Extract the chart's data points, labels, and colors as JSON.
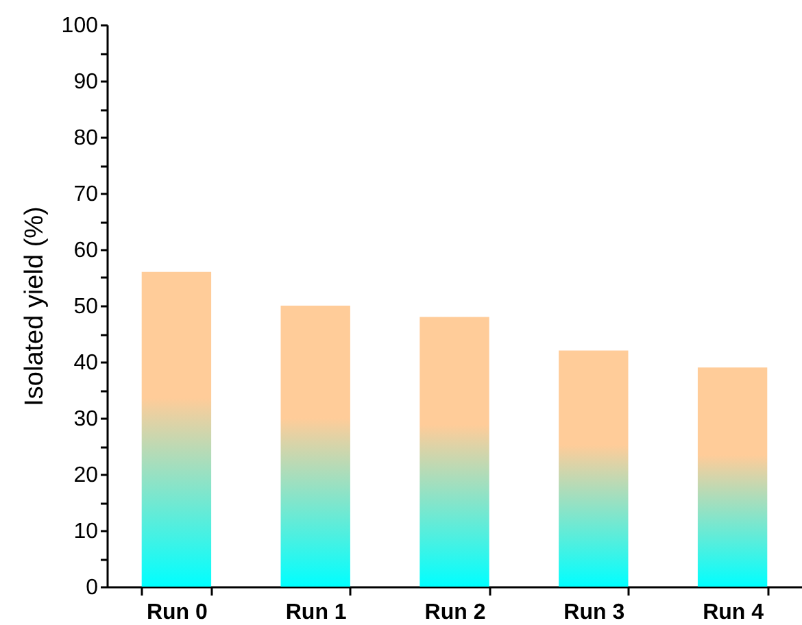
{
  "chart_data": {
    "type": "bar",
    "ylabel": "Isolated yield (%)",
    "categories": [
      "Run 0",
      "Run 1",
      "Run 2",
      "Run 3",
      "Run 4"
    ],
    "values": [
      56,
      50,
      48,
      42,
      39
    ],
    "color": "#ffcc99",
    "ylim": [
      0,
      100
    ],
    "yticks": [
      0,
      {
        "value": 5,
        "label": null
      },
      10,
      {
        "value": 15,
        "label": null
      },
      20,
      {
        "value": 25,
        "label": null
      },
      30,
      {
        "value": 35,
        "label": null
      },
      40,
      {
        "value": 45,
        "label": null
      },
      50,
      {
        "value": 55,
        "label": null
      },
      60,
      {
        "value": 65,
        "label": null
      },
      70,
      {
        "value": 75,
        "label": null
      },
      80,
      {
        "value": 85,
        "label": null
      },
      90,
      {
        "value": 95,
        "label": null
      },
      100
    ],
    "grid": false
  }
}
